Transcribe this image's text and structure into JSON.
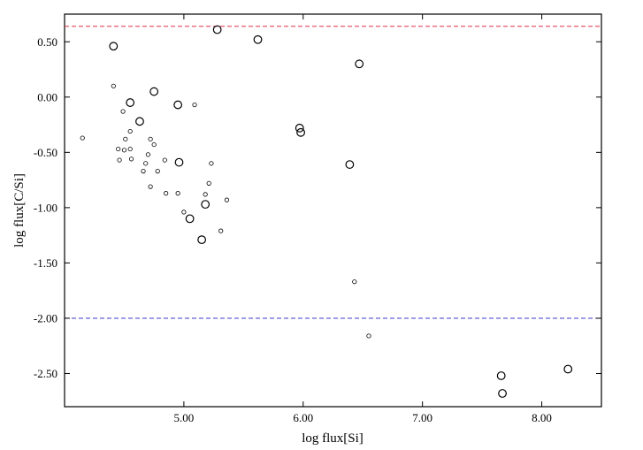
{
  "chart_data": {
    "type": "scatter",
    "title": "",
    "xlabel": "log flux[Si]",
    "ylabel": "log flux[C/Si]",
    "xlim": [
      4.0,
      8.5
    ],
    "ylim": [
      -2.8,
      0.75
    ],
    "xticks": [
      5.0,
      6.0,
      7.0,
      8.0
    ],
    "xtick_labels": [
      "5.00",
      "6.00",
      "7.00",
      "8.00"
    ],
    "yticks": [
      0.5,
      0.0,
      -0.5,
      -1.0,
      -1.5,
      -2.0,
      -2.5
    ],
    "ytick_labels": [
      "0.50",
      "0.00",
      "-0.50",
      "-1.00",
      "-1.50",
      "-2.00",
      "-2.50"
    ],
    "grid": false,
    "reference_lines": [
      {
        "y": 0.64,
        "color": "#e0304a",
        "style": "dashed"
      },
      {
        "y": -2.0,
        "color": "#3a3ad0",
        "style": "dashed"
      }
    ],
    "series": [
      {
        "marker": "large-open-circle",
        "points": [
          {
            "x": 4.41,
            "y": 0.46
          },
          {
            "x": 5.28,
            "y": 0.61
          },
          {
            "x": 5.62,
            "y": 0.52
          },
          {
            "x": 6.47,
            "y": 0.3
          },
          {
            "x": 4.55,
            "y": -0.05
          },
          {
            "x": 4.75,
            "y": 0.05
          },
          {
            "x": 4.95,
            "y": -0.07
          },
          {
            "x": 4.63,
            "y": -0.22
          },
          {
            "x": 4.96,
            "y": -0.59
          },
          {
            "x": 5.18,
            "y": -0.97
          },
          {
            "x": 5.05,
            "y": -1.1
          },
          {
            "x": 5.15,
            "y": -1.29
          },
          {
            "x": 5.97,
            "y": -0.28
          },
          {
            "x": 5.98,
            "y": -0.32
          },
          {
            "x": 6.39,
            "y": -0.61
          },
          {
            "x": 7.66,
            "y": -2.52
          },
          {
            "x": 7.67,
            "y": -2.68
          },
          {
            "x": 8.22,
            "y": -2.46
          }
        ]
      },
      {
        "marker": "small-open-circle",
        "points": [
          {
            "x": 4.15,
            "y": -0.37
          },
          {
            "x": 4.41,
            "y": 0.1
          },
          {
            "x": 4.49,
            "y": -0.13
          },
          {
            "x": 4.55,
            "y": -0.31
          },
          {
            "x": 4.51,
            "y": -0.38
          },
          {
            "x": 4.45,
            "y": -0.47
          },
          {
            "x": 4.5,
            "y": -0.48
          },
          {
            "x": 4.55,
            "y": -0.47
          },
          {
            "x": 4.46,
            "y": -0.57
          },
          {
            "x": 4.56,
            "y": -0.56
          },
          {
            "x": 4.68,
            "y": -0.6
          },
          {
            "x": 4.66,
            "y": -0.67
          },
          {
            "x": 4.7,
            "y": -0.52
          },
          {
            "x": 4.72,
            "y": -0.38
          },
          {
            "x": 4.75,
            "y": -0.43
          },
          {
            "x": 4.78,
            "y": -0.67
          },
          {
            "x": 4.84,
            "y": -0.57
          },
          {
            "x": 4.72,
            "y": -0.81
          },
          {
            "x": 4.85,
            "y": -0.87
          },
          {
            "x": 4.95,
            "y": -0.87
          },
          {
            "x": 5.09,
            "y": -0.07
          },
          {
            "x": 5.23,
            "y": -0.6
          },
          {
            "x": 5.21,
            "y": -0.78
          },
          {
            "x": 5.18,
            "y": -0.88
          },
          {
            "x": 5.36,
            "y": -0.93
          },
          {
            "x": 5.0,
            "y": -1.04
          },
          {
            "x": 5.31,
            "y": -1.21
          },
          {
            "x": 6.43,
            "y": -1.67
          },
          {
            "x": 6.55,
            "y": -2.16
          }
        ]
      }
    ]
  }
}
